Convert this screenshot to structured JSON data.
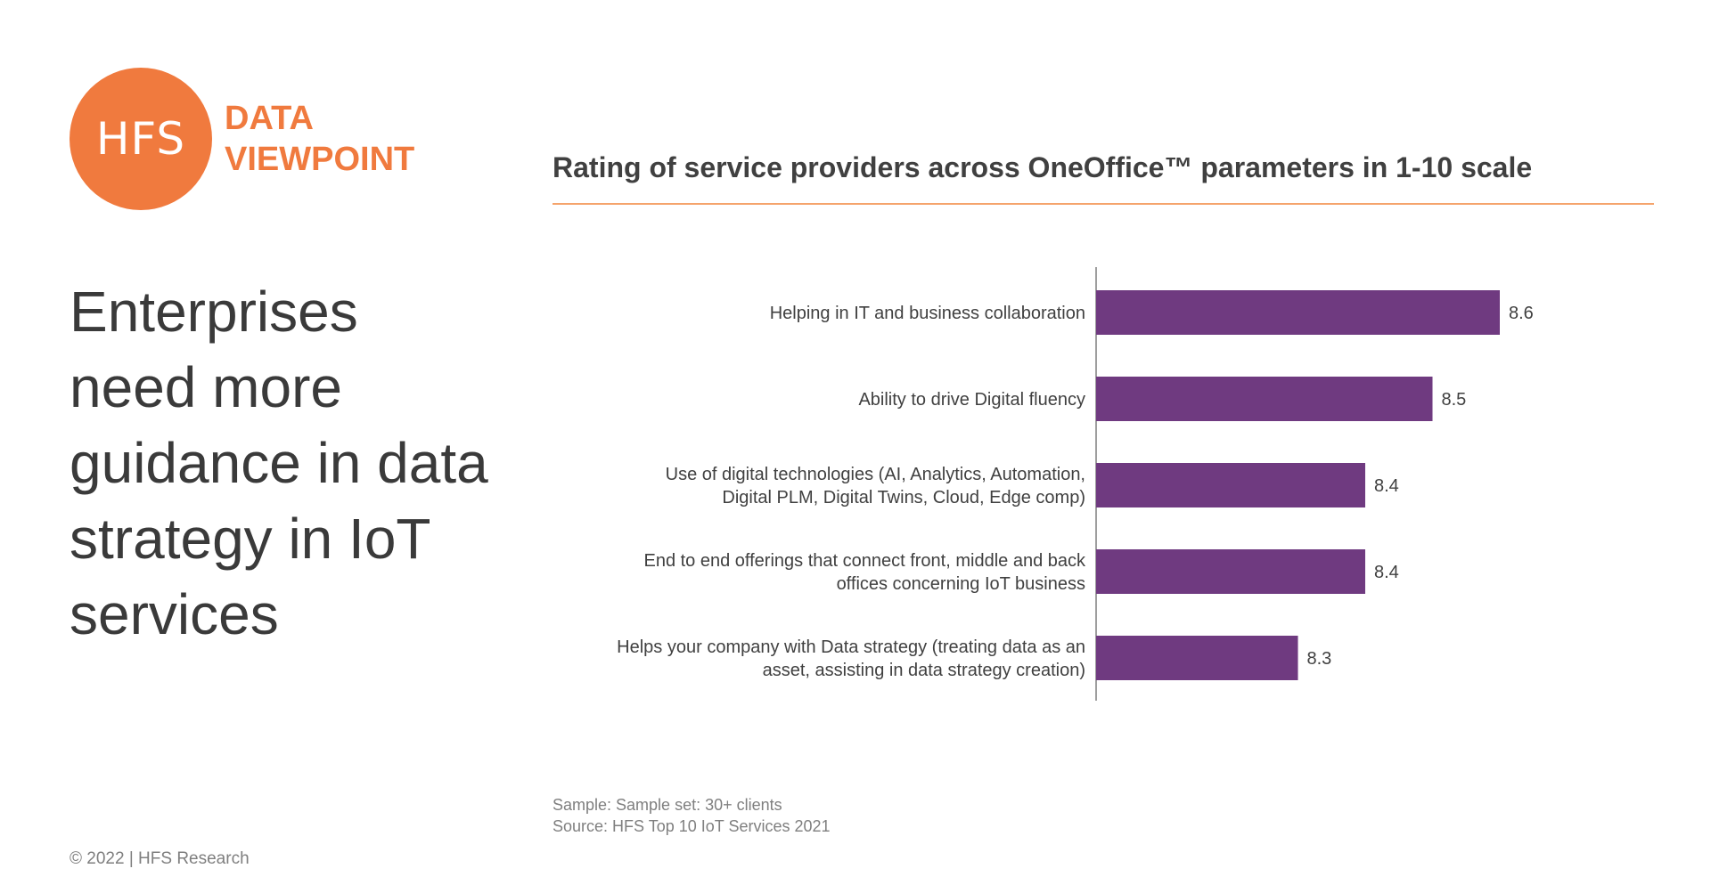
{
  "logo": {
    "mark": "HFS",
    "tagline_line1": "DATA",
    "tagline_line2": "VIEWPOINT",
    "color": "#f07a3e"
  },
  "headline": "Enterprises need more guidance in data strategy in IoT services",
  "chart_title": "Rating of service providers across OneOffice™ parameters in 1-10 scale",
  "chart_data": {
    "type": "bar",
    "orientation": "horizontal",
    "categories": [
      [
        "Helping in IT and business collaboration"
      ],
      [
        "Ability to drive Digital fluency"
      ],
      [
        "Use of digital technologies (AI, Analytics, Automation,",
        "Digital PLM, Digital Twins, Cloud, Edge comp)"
      ],
      [
        "End to end offerings that connect front, middle and back",
        "offices concerning IoT business"
      ],
      [
        "Helps your company with Data strategy (treating data as an",
        "asset, assisting in data strategy creation)"
      ]
    ],
    "values": [
      8.6,
      8.5,
      8.4,
      8.4,
      8.3
    ],
    "value_labels": [
      "8.6",
      "8.5",
      "8.4",
      "8.4",
      "8.3"
    ],
    "xlim": [
      8.0,
      8.6
    ],
    "bar_color": "#6f3a80",
    "grid": false,
    "legend": "none"
  },
  "footnote": {
    "sample": "Sample: Sample set: 30+ clients",
    "source": "Source: HFS Top 10 IoT Services 2021"
  },
  "copyright": "© 2022 | HFS Research"
}
